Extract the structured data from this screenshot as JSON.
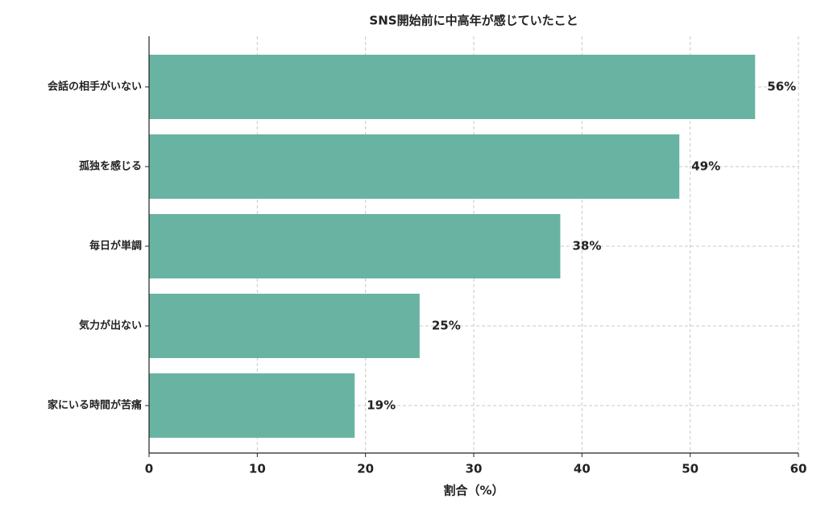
{
  "chart_data": {
    "type": "barh",
    "title": "SNS開始前に中高年が感じていたこと",
    "xlabel": "割合（%）",
    "categories": [
      "会話の相手がいない",
      "孤独を感じる",
      "毎日が単調",
      "気力が出ない",
      "家にいる時間が苦痛"
    ],
    "values": [
      56,
      49,
      38,
      25,
      19
    ],
    "value_labels": [
      "56%",
      "49%",
      "38%",
      "25%",
      "19%"
    ],
    "color": "#69b3a2",
    "xlim": [
      0,
      60
    ],
    "xticks": [
      0,
      10,
      20,
      30,
      40,
      50,
      60
    ],
    "grid": true
  }
}
